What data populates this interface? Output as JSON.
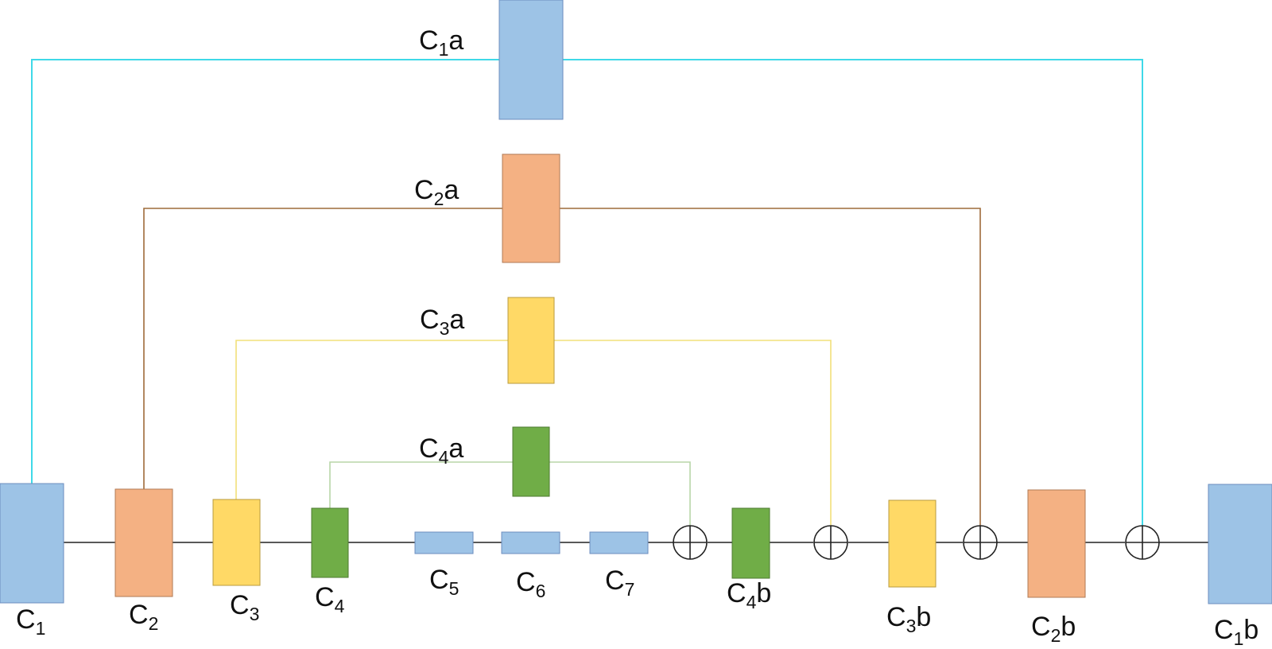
{
  "colors": {
    "blue": "#9DC3E6",
    "orange": "#F4B183",
    "yellow": "#FFD966",
    "green": "#70AD47",
    "line_main": "#222222",
    "line_c1": "#3FD9E8",
    "line_c2": "#9E6B3A",
    "line_c3": "#F2E07A",
    "line_c4": "#B8D6A8"
  },
  "nodes": {
    "c1": {
      "base": "C",
      "sub": "1",
      "suffix": ""
    },
    "c2": {
      "base": "C",
      "sub": "2",
      "suffix": ""
    },
    "c3": {
      "base": "C",
      "sub": "3",
      "suffix": ""
    },
    "c4": {
      "base": "C",
      "sub": "4",
      "suffix": ""
    },
    "c5": {
      "base": "C",
      "sub": "5",
      "suffix": ""
    },
    "c6": {
      "base": "C",
      "sub": "6",
      "suffix": ""
    },
    "c7": {
      "base": "C",
      "sub": "7",
      "suffix": ""
    },
    "c4b": {
      "base": "C",
      "sub": "4",
      "suffix": "b"
    },
    "c3b": {
      "base": "C",
      "sub": "3",
      "suffix": "b"
    },
    "c2b": {
      "base": "C",
      "sub": "2",
      "suffix": "b"
    },
    "c1b": {
      "base": "C",
      "sub": "1",
      "suffix": "b"
    },
    "c1a": {
      "base": "C",
      "sub": "1",
      "suffix": "a"
    },
    "c2a": {
      "base": "C",
      "sub": "2",
      "suffix": "a"
    },
    "c3a": {
      "base": "C",
      "sub": "3",
      "suffix": "a"
    },
    "c4a": {
      "base": "C",
      "sub": "4",
      "suffix": "a"
    }
  },
  "adder_symbol": "⊕"
}
